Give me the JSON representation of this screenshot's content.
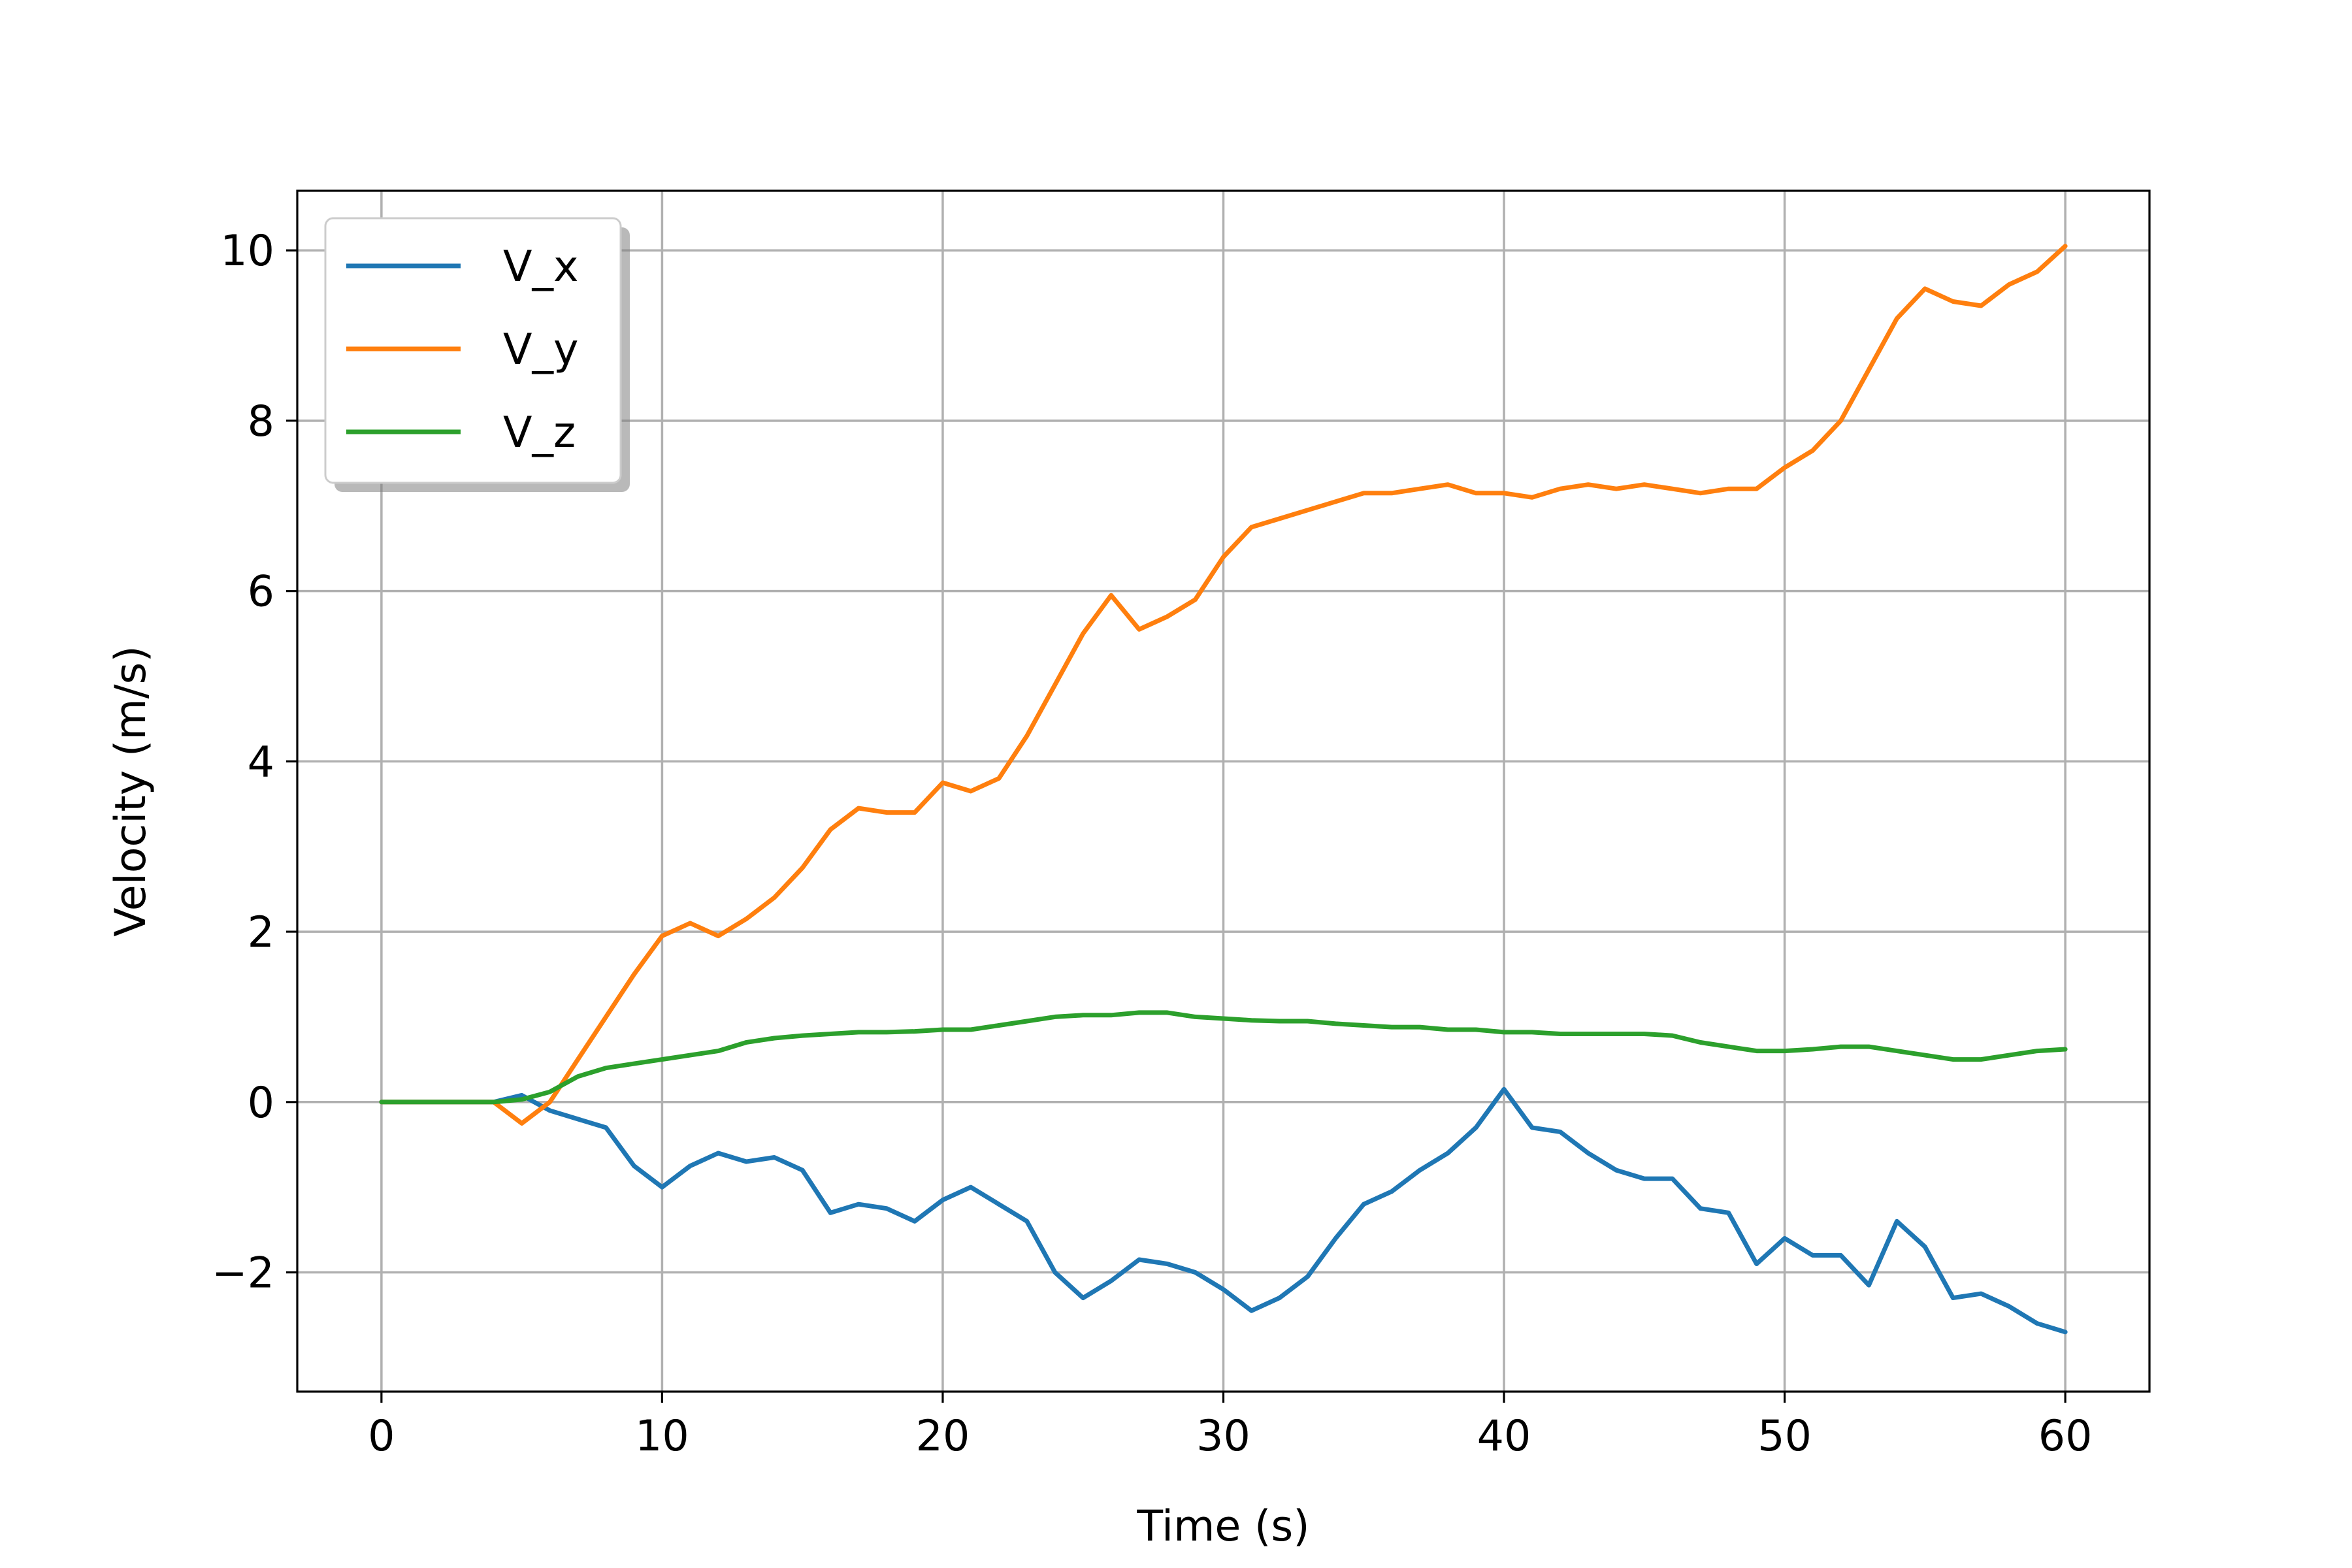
{
  "chart_data": {
    "type": "line",
    "xlabel": "Time (s)",
    "ylabel": "Velocity (m/s)",
    "xlim": [
      -3,
      63
    ],
    "ylim": [
      -3.4,
      10.7
    ],
    "xticks": [
      0,
      10,
      20,
      30,
      40,
      50,
      60
    ],
    "yticks": [
      -2,
      0,
      2,
      4,
      6,
      8,
      10
    ],
    "xtick_labels": [
      "0",
      "10",
      "20",
      "30",
      "40",
      "50",
      "60"
    ],
    "ytick_labels": [
      "−2",
      "0",
      "2",
      "4",
      "6",
      "8",
      "10"
    ],
    "grid": true,
    "legend_position": "top-left",
    "series": [
      {
        "name": "V_x",
        "color": "#1f77b4",
        "x": [
          0,
          2,
          4,
          5,
          6,
          7,
          8,
          9,
          10,
          11,
          12,
          13,
          14,
          15,
          16,
          17,
          18,
          19,
          20,
          21,
          22,
          23,
          24,
          25,
          26,
          27,
          28,
          29,
          30,
          31,
          32,
          33,
          34,
          35,
          36,
          37,
          38,
          39,
          40,
          41,
          42,
          43,
          44,
          45,
          46,
          47,
          48,
          49,
          50,
          51,
          52,
          53,
          54,
          55,
          56,
          57,
          58,
          59,
          60
        ],
        "y": [
          0,
          0,
          0,
          0.08,
          -0.1,
          -0.2,
          -0.3,
          -0.75,
          -1.0,
          -0.75,
          -0.6,
          -0.7,
          -0.65,
          -0.8,
          -1.3,
          -1.2,
          -1.25,
          -1.4,
          -1.15,
          -1.0,
          -1.2,
          -1.4,
          -2.0,
          -2.3,
          -2.1,
          -1.85,
          -1.9,
          -2.0,
          -2.2,
          -2.45,
          -2.3,
          -2.05,
          -1.6,
          -1.2,
          -1.05,
          -0.8,
          -0.6,
          -0.3,
          0.15,
          -0.3,
          -0.35,
          -0.6,
          -0.8,
          -0.9,
          -0.9,
          -1.25,
          -1.3,
          -1.9,
          -1.6,
          -1.8,
          -1.8,
          -2.15,
          -1.4,
          -1.7,
          -2.3,
          -2.25,
          -2.4,
          -2.6,
          -2.7
        ]
      },
      {
        "name": "V_y",
        "color": "#ff7f0e",
        "x": [
          0,
          2,
          4,
          5,
          6,
          7,
          8,
          9,
          10,
          11,
          12,
          13,
          14,
          15,
          16,
          17,
          18,
          19,
          20,
          21,
          22,
          23,
          24,
          25,
          26,
          27,
          28,
          29,
          30,
          31,
          32,
          33,
          34,
          35,
          36,
          37,
          38,
          39,
          40,
          41,
          42,
          43,
          44,
          45,
          46,
          47,
          48,
          49,
          50,
          51,
          52,
          53,
          54,
          55,
          56,
          57,
          58,
          59,
          60
        ],
        "y": [
          0,
          0,
          0,
          -0.25,
          0,
          0.5,
          1.0,
          1.5,
          1.95,
          2.1,
          1.95,
          2.15,
          2.4,
          2.75,
          3.2,
          3.45,
          3.4,
          3.4,
          3.75,
          3.65,
          3.8,
          4.3,
          4.9,
          5.5,
          5.95,
          5.55,
          5.7,
          5.9,
          6.4,
          6.75,
          6.85,
          6.95,
          7.05,
          7.15,
          7.15,
          7.2,
          7.25,
          7.15,
          7.15,
          7.1,
          7.2,
          7.25,
          7.2,
          7.25,
          7.2,
          7.15,
          7.2,
          7.2,
          7.45,
          7.65,
          8.0,
          8.6,
          9.2,
          9.55,
          9.4,
          9.35,
          9.6,
          9.75,
          10.05
        ]
      },
      {
        "name": "V_z",
        "color": "#2ca02c",
        "x": [
          0,
          2,
          4,
          5,
          6,
          7,
          8,
          9,
          10,
          11,
          12,
          13,
          14,
          15,
          16,
          17,
          18,
          19,
          20,
          21,
          22,
          23,
          24,
          25,
          26,
          27,
          28,
          29,
          30,
          31,
          32,
          33,
          34,
          35,
          36,
          37,
          38,
          39,
          40,
          41,
          42,
          43,
          44,
          45,
          46,
          47,
          48,
          49,
          50,
          51,
          52,
          53,
          54,
          55,
          56,
          57,
          58,
          59,
          60
        ],
        "y": [
          0,
          0,
          0,
          0.03,
          0.12,
          0.3,
          0.4,
          0.45,
          0.5,
          0.55,
          0.6,
          0.7,
          0.75,
          0.78,
          0.8,
          0.82,
          0.82,
          0.83,
          0.85,
          0.85,
          0.9,
          0.95,
          1.0,
          1.02,
          1.02,
          1.05,
          1.05,
          1.0,
          0.98,
          0.96,
          0.95,
          0.95,
          0.92,
          0.9,
          0.88,
          0.88,
          0.85,
          0.85,
          0.82,
          0.82,
          0.8,
          0.8,
          0.8,
          0.8,
          0.78,
          0.7,
          0.65,
          0.6,
          0.6,
          0.62,
          0.65,
          0.65,
          0.6,
          0.55,
          0.5,
          0.5,
          0.55,
          0.6,
          0.62
        ]
      }
    ]
  }
}
